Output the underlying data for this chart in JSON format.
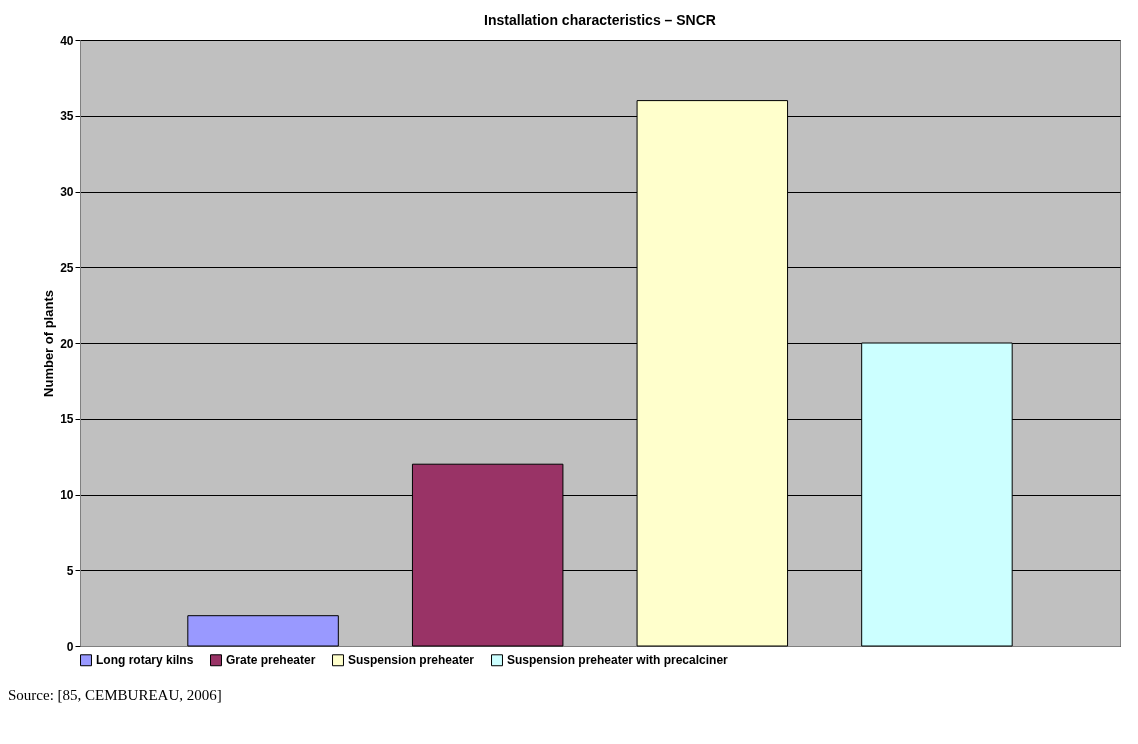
{
  "chart_data": {
    "type": "bar",
    "title": "Installation characteristics – SNCR",
    "ylabel": "Number of plants",
    "categories": [
      null
    ],
    "series": [
      {
        "name": "Long rotary kilns",
        "color": "#9999ff",
        "values": [
          2
        ]
      },
      {
        "name": "Grate preheater",
        "color": "#993366",
        "values": [
          12
        ]
      },
      {
        "name": "Suspension preheater",
        "color": "#ffffcc",
        "values": [
          36
        ]
      },
      {
        "name": "Suspension preheater with precalciner",
        "color": "#ccffff",
        "values": [
          20
        ]
      }
    ],
    "ylim": [
      0,
      40
    ],
    "yticks": [
      0,
      5,
      10,
      15,
      20,
      25,
      30,
      35,
      40
    ],
    "grid": "y",
    "legend": "bottom",
    "tick_labels": "y",
    "annotations": [
      "Source: [85, CEMBUREAU, 2006]"
    ]
  }
}
